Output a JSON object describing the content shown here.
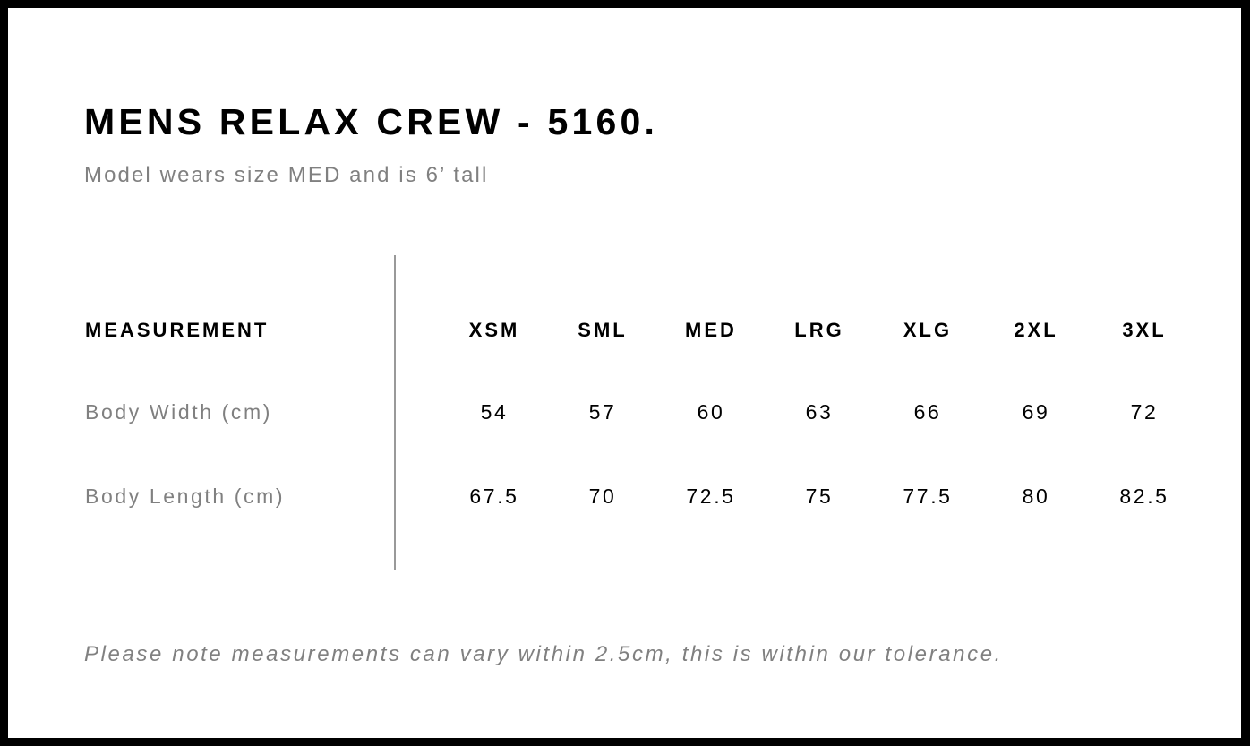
{
  "title": "MENS RELAX CREW - 5160.",
  "subtitle": "Model wears size MED and is 6’ tall",
  "table": {
    "header_label": "MEASUREMENT",
    "sizes": [
      "XSM",
      "SML",
      "MED",
      "LRG",
      "XLG",
      "2XL",
      "3XL"
    ],
    "rows": [
      {
        "label": "Body Width (cm)",
        "values": [
          "54",
          "57",
          "60",
          "63",
          "66",
          "69",
          "72"
        ]
      },
      {
        "label": "Body Length (cm)",
        "values": [
          "67.5",
          "70",
          "72.5",
          "75",
          "77.5",
          "80",
          "82.5"
        ]
      }
    ]
  },
  "note": "Please note measurements can vary within 2.5cm, this is within our tolerance."
}
